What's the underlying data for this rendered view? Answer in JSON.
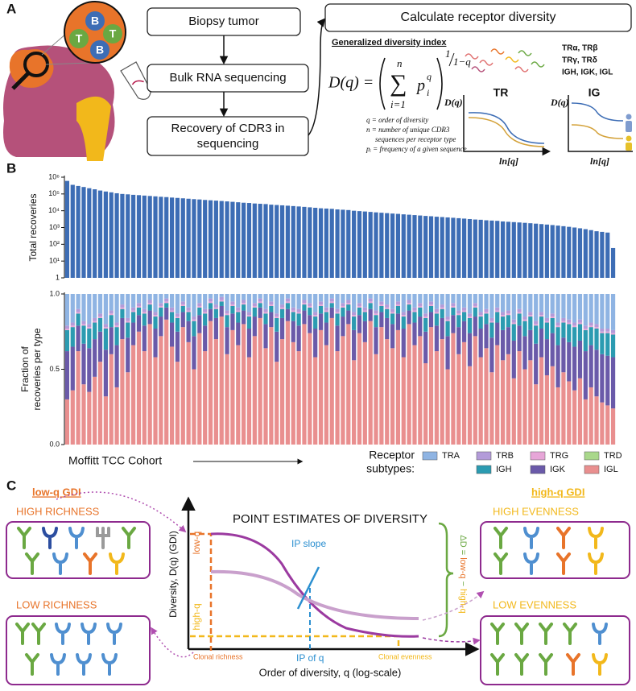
{
  "panel_labels": [
    "A",
    "B",
    "C"
  ],
  "panel_a": {
    "cell_labels": [
      "B",
      "T",
      "T",
      "B"
    ],
    "steps": [
      "Biopsy tumor",
      "Bulk RNA sequencing",
      [
        "Recovery of CDR3 in",
        "sequencing"
      ]
    ],
    "calc_box": "Calculate receptor diversity",
    "index_title": "Generalized diversity index",
    "formula": {
      "lhs": "D(q) =",
      "sum": "∑",
      "upper": "n",
      "lower": "i=1",
      "base": "p",
      "sub": "i",
      "sup": "q",
      "exp_num": "1",
      "exp_den": "1−q"
    },
    "notes": [
      "q = order of diversity",
      "n = number of unique CDR3",
      "sequences per receptor type",
      "pᵢ = frequency of a given sequence"
    ],
    "receptor_types": [
      "TRα, TRβ",
      "TRγ, TRδ",
      "IGH, IGK, IGL"
    ],
    "tr_panel": {
      "title": "TR",
      "ylabel": "D(q)",
      "xlabel": "ln[q]"
    },
    "ig_panel": {
      "title": "IG",
      "ylabel": "D(q)",
      "xlabel": "ln[q]"
    }
  },
  "chart_data": [
    {
      "type": "bar",
      "ylabel": "Total recoveries",
      "log_scale": true,
      "color": "#3d6db5",
      "ylim": [
        1,
        1000000
      ],
      "yticks": [
        1,
        {
          "value": 10,
          "label": "10¹"
        },
        {
          "value": 100,
          "label": "10²"
        },
        {
          "value": 1000,
          "label": "10³"
        },
        {
          "value": 10000,
          "label": "10⁴"
        },
        {
          "value": 100000,
          "label": "10⁵"
        },
        {
          "value": 1000000,
          "label": "10⁶"
        }
      ],
      "values": [
        600000,
        350000,
        300000,
        260000,
        220000,
        190000,
        160000,
        140000,
        125000,
        110000,
        100000,
        95000,
        89000,
        85000,
        80000,
        76000,
        72000,
        68000,
        65000,
        61000,
        58000,
        55000,
        52000,
        49000,
        47000,
        44000,
        42000,
        40000,
        38000,
        36000,
        34000,
        32000,
        30000,
        29000,
        27000,
        26000,
        25000,
        23000,
        22000,
        21000,
        20000,
        19000,
        18000,
        17000,
        16000,
        15000,
        14000,
        13500,
        13000,
        12000,
        11500,
        11000,
        10000,
        9500,
        9000,
        8500,
        8000,
        7600,
        7200,
        6800,
        6500,
        6100,
        5800,
        5500,
        5200,
        4900,
        4700,
        4400,
        4200,
        4000,
        3800,
        3600,
        3400,
        3200,
        3000,
        2900,
        2700,
        2600,
        2500,
        2300,
        2200,
        2100,
        2000,
        1900,
        1800,
        1700,
        1600,
        1500,
        1400,
        1300,
        1200,
        1100,
        1000,
        900,
        800,
        700,
        600,
        550,
        500,
        60
      ]
    },
    {
      "type": "stacked_bar",
      "ylabel": [
        "Fraction of",
        "recoveries per type"
      ],
      "xlabel": "Moffitt TCC Cohort",
      "legend_title": [
        "Receptor",
        "subtypes:"
      ],
      "ylim": [
        0,
        1
      ],
      "yticks": [
        {
          "value": 0,
          "label": "0.0"
        },
        0.5,
        {
          "value": 1,
          "label": "1.0"
        }
      ],
      "series": [
        {
          "name": "TRA",
          "color": "#8fb4e3",
          "values": [
            0.21,
            0.19,
            0.1,
            0.18,
            0.2,
            0.16,
            0.13,
            0.2,
            0.11,
            0.19,
            0.07,
            0.16,
            0.09,
            0.06,
            0.1,
            0.04,
            0.12,
            0.06,
            0.03,
            0.09,
            0.13,
            0.05,
            0.09,
            0.15,
            0.06,
            0.1,
            0.03,
            0.07,
            0.02,
            0.11,
            0.05,
            0.09,
            0.04,
            0.12,
            0.06,
            0.03,
            0.1,
            0.05,
            0.13,
            0.07,
            0.03,
            0.09,
            0.1,
            0.04,
            0.06,
            0.12,
            0.05,
            0.09,
            0.03,
            0.1,
            0.06,
            0.04,
            0.12,
            0.06,
            0.09,
            0.03,
            0.11,
            0.05,
            0.07,
            0.1,
            0.05,
            0.12,
            0.04,
            0.09,
            0.06,
            0.13,
            0.05,
            0.1,
            0.07,
            0.15,
            0.06,
            0.11,
            0.09,
            0.13,
            0.06,
            0.12,
            0.1,
            0.16,
            0.09,
            0.12,
            0.11,
            0.17,
            0.1,
            0.15,
            0.12,
            0.18,
            0.12,
            0.16,
            0.13,
            0.19,
            0.16,
            0.17,
            0.19,
            0.17,
            0.21,
            0.19,
            0.2,
            0.23,
            0.23,
            0.24
          ]
        },
        {
          "name": "TRB",
          "color": "#b39bd9",
          "values": [
            0.02,
            0.02,
            0.02,
            0.02,
            0.02,
            0.02,
            0.02,
            0.02,
            0.02,
            0.02,
            0.02,
            0.02,
            0.02,
            0.02,
            0.02,
            0.02,
            0.02,
            0.02,
            0.02,
            0.02,
            0.02,
            0.02,
            0.02,
            0.02,
            0.02,
            0.02,
            0.02,
            0.02,
            0.02,
            0.02,
            0.02,
            0.02,
            0.02,
            0.02,
            0.02,
            0.02,
            0.02,
            0.02,
            0.02,
            0.02,
            0.02,
            0.02,
            0.02,
            0.02,
            0.02,
            0.02,
            0.02,
            0.02,
            0.02,
            0.02,
            0.02,
            0.02,
            0.02,
            0.02,
            0.02,
            0.02,
            0.02,
            0.02,
            0.02,
            0.02,
            0.02,
            0.02,
            0.02,
            0.02,
            0.02,
            0.02,
            0.02,
            0.02,
            0.02,
            0.02,
            0.02,
            0.02,
            0.02,
            0.02,
            0.02,
            0.02,
            0.02,
            0.02,
            0.02,
            0.02,
            0.02,
            0.02,
            0.02,
            0.02,
            0.02,
            0.02,
            0.02,
            0.02,
            0.02,
            0.02,
            0.02,
            0.02,
            0.02,
            0.02,
            0.02,
            0.02,
            0.02,
            0.02,
            0.02,
            0.02
          ]
        },
        {
          "name": "TRG",
          "color": "#e7a6d8",
          "values": [
            0.01,
            0.01,
            0.01,
            0.01,
            0.01,
            0.01,
            0.01,
            0.01,
            0.01,
            0.01,
            0.01,
            0.01,
            0.01,
            0.01,
            0.01,
            0.01,
            0.01,
            0.01,
            0.01,
            0.01,
            0.01,
            0.01,
            0.01,
            0.01,
            0.01,
            0.01,
            0.01,
            0.01,
            0.01,
            0.01,
            0.01,
            0.01,
            0.01,
            0.01,
            0.01,
            0.01,
            0.01,
            0.01,
            0.01,
            0.01,
            0.01,
            0.01,
            0.01,
            0.01,
            0.01,
            0.01,
            0.01,
            0.01,
            0.01,
            0.01,
            0.01,
            0.01,
            0.01,
            0.01,
            0.01,
            0.01,
            0.01,
            0.01,
            0.01,
            0.01,
            0.01,
            0.01,
            0.01,
            0.01,
            0.01,
            0.01,
            0.01,
            0.01,
            0.01,
            0.01,
            0.01,
            0.01,
            0.01,
            0.01,
            0.01,
            0.01,
            0.01,
            0.01,
            0.01,
            0.01,
            0.01,
            0.01,
            0.01,
            0.01,
            0.01,
            0.01,
            0.01,
            0.01,
            0.01,
            0.01,
            0.01,
            0.01,
            0.01,
            0.01,
            0.01,
            0.01,
            0.01,
            0.01,
            0.01,
            0.01
          ]
        },
        {
          "name": "TRD",
          "color": "#a9d88b",
          "values": [
            0,
            0,
            0,
            0,
            0,
            0,
            0,
            0,
            0,
            0,
            0,
            0,
            0,
            0,
            0,
            0,
            0,
            0,
            0,
            0,
            0,
            0,
            0,
            0,
            0,
            0,
            0,
            0,
            0,
            0,
            0,
            0,
            0,
            0,
            0,
            0,
            0,
            0,
            0,
            0,
            0,
            0,
            0,
            0,
            0,
            0,
            0,
            0,
            0,
            0,
            0,
            0,
            0,
            0,
            0,
            0,
            0,
            0,
            0,
            0,
            0,
            0,
            0,
            0,
            0,
            0,
            0,
            0,
            0,
            0,
            0,
            0,
            0,
            0,
            0,
            0,
            0,
            0,
            0,
            0,
            0,
            0,
            0,
            0,
            0,
            0,
            0,
            0,
            0,
            0,
            0,
            0,
            0,
            0,
            0,
            0,
            0,
            0,
            0,
            0
          ]
        },
        {
          "name": "IGH",
          "color": "#2b9bb1",
          "values": [
            0.14,
            0.13,
            0.08,
            0.12,
            0.13,
            0.11,
            0.09,
            0.14,
            0.08,
            0.12,
            0.06,
            0.1,
            0.07,
            0.05,
            0.08,
            0.04,
            0.08,
            0.06,
            0.03,
            0.07,
            0.09,
            0.04,
            0.06,
            0.1,
            0.05,
            0.08,
            0.04,
            0.06,
            0.03,
            0.08,
            0.05,
            0.07,
            0.04,
            0.08,
            0.06,
            0.03,
            0.07,
            0.04,
            0.09,
            0.06,
            0.04,
            0.06,
            0.08,
            0.04,
            0.05,
            0.08,
            0.05,
            0.07,
            0.03,
            0.08,
            0.06,
            0.04,
            0.09,
            0.05,
            0.06,
            0.04,
            0.08,
            0.04,
            0.06,
            0.07,
            0.05,
            0.08,
            0.04,
            0.07,
            0.06,
            0.09,
            0.04,
            0.08,
            0.06,
            0.1,
            0.05,
            0.08,
            0.06,
            0.1,
            0.06,
            0.08,
            0.07,
            0.1,
            0.07,
            0.09,
            0.08,
            0.11,
            0.08,
            0.1,
            0.09,
            0.12,
            0.08,
            0.11,
            0.1,
            0.12,
            0.1,
            0.12,
            0.13,
            0.11,
            0.14,
            0.12,
            0.14,
            0.14,
            0.15,
            0.15
          ]
        },
        {
          "name": "IGK",
          "color": "#6a5aa9",
          "values": [
            0.32,
            0.29,
            0.17,
            0.27,
            0.29,
            0.25,
            0.2,
            0.31,
            0.18,
            0.28,
            0.14,
            0.23,
            0.15,
            0.11,
            0.17,
            0.09,
            0.19,
            0.13,
            0.08,
            0.16,
            0.2,
            0.1,
            0.14,
            0.22,
            0.12,
            0.17,
            0.08,
            0.14,
            0.07,
            0.18,
            0.11,
            0.15,
            0.09,
            0.19,
            0.13,
            0.07,
            0.16,
            0.1,
            0.2,
            0.14,
            0.08,
            0.14,
            0.17,
            0.09,
            0.12,
            0.19,
            0.11,
            0.15,
            0.07,
            0.17,
            0.13,
            0.09,
            0.2,
            0.12,
            0.14,
            0.08,
            0.18,
            0.1,
            0.14,
            0.16,
            0.11,
            0.19,
            0.09,
            0.15,
            0.13,
            0.21,
            0.1,
            0.17,
            0.14,
            0.22,
            0.12,
            0.18,
            0.14,
            0.22,
            0.13,
            0.19,
            0.16,
            0.23,
            0.15,
            0.2,
            0.18,
            0.25,
            0.17,
            0.22,
            0.2,
            0.27,
            0.19,
            0.24,
            0.22,
            0.28,
            0.23,
            0.26,
            0.29,
            0.25,
            0.32,
            0.28,
            0.31,
            0.32,
            0.33,
            0.34
          ]
        },
        {
          "name": "IGL",
          "color": "#e98f8f",
          "values": [
            0.3,
            0.36,
            0.62,
            0.4,
            0.35,
            0.45,
            0.55,
            0.32,
            0.6,
            0.38,
            0.7,
            0.48,
            0.66,
            0.75,
            0.62,
            0.8,
            0.58,
            0.72,
            0.83,
            0.65,
            0.55,
            0.78,
            0.68,
            0.5,
            0.74,
            0.62,
            0.82,
            0.7,
            0.85,
            0.6,
            0.76,
            0.66,
            0.8,
            0.58,
            0.72,
            0.84,
            0.64,
            0.78,
            0.55,
            0.7,
            0.82,
            0.68,
            0.62,
            0.8,
            0.74,
            0.58,
            0.76,
            0.66,
            0.84,
            0.62,
            0.72,
            0.8,
            0.56,
            0.74,
            0.68,
            0.82,
            0.6,
            0.78,
            0.7,
            0.64,
            0.76,
            0.58,
            0.8,
            0.66,
            0.72,
            0.54,
            0.78,
            0.62,
            0.7,
            0.5,
            0.74,
            0.6,
            0.68,
            0.52,
            0.72,
            0.58,
            0.64,
            0.48,
            0.66,
            0.56,
            0.6,
            0.44,
            0.62,
            0.5,
            0.56,
            0.4,
            0.58,
            0.46,
            0.52,
            0.38,
            0.48,
            0.42,
            0.36,
            0.44,
            0.3,
            0.38,
            0.32,
            0.28,
            0.26,
            0.24
          ]
        }
      ]
    }
  ],
  "panel_c": {
    "low_title": "low-q GDI",
    "high_title": "high-q GDI",
    "high_richness": "HIGH RICHNESS",
    "low_richness": "LOW RICHNESS",
    "high_evenness": "HIGH EVENNESS",
    "low_evenness": "LOW EVENNESS",
    "chart_title": "POINT ESTIMATES OF DIVERSITY",
    "ylabel": "Diversity, D(q) (GDI)",
    "xlabel": "Order of diversity, q (log-scale)",
    "low_q": "low-q",
    "high_q": "high-q",
    "ip_slope": "IP slope",
    "ip_of_q": "IP of q",
    "clonal_richness": "Clonal richness",
    "clonal_evenness": "Clonal evenness",
    "delta": [
      "ΔD =",
      "low-q",
      "−",
      "high-q"
    ]
  }
}
